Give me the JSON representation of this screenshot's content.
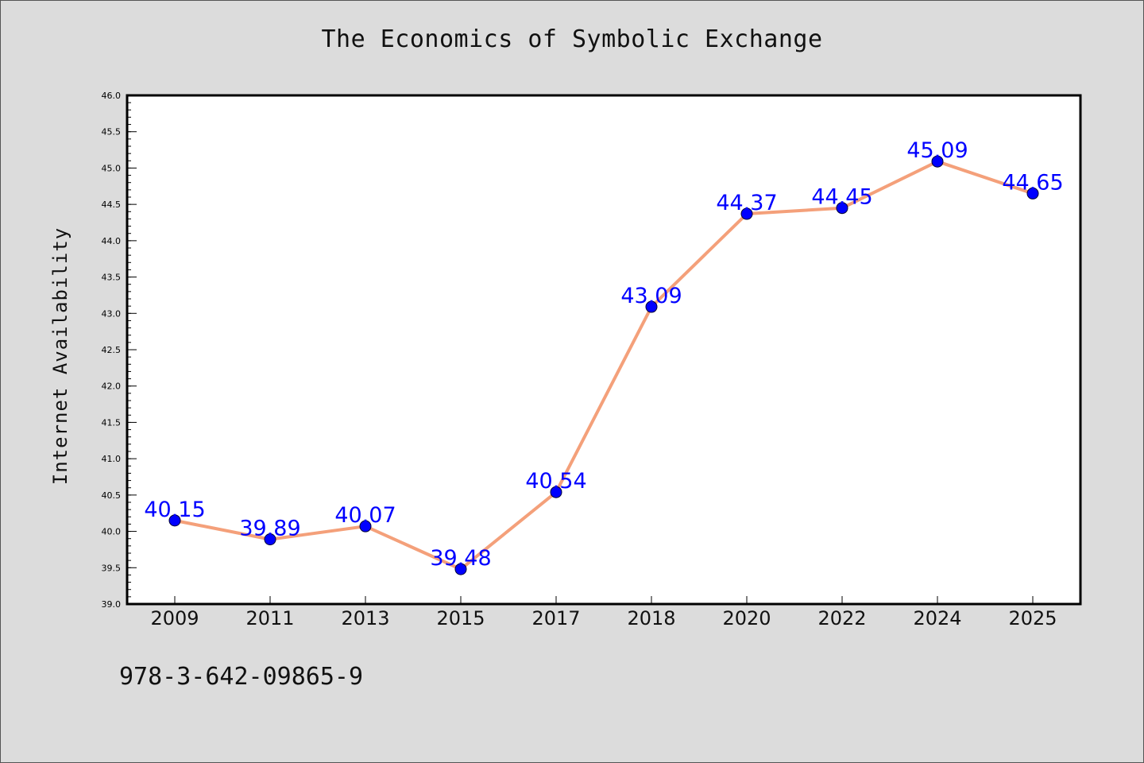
{
  "chart_data": {
    "type": "line",
    "title": "The Economics of Symbolic Exchange",
    "xlabel": "",
    "ylabel": "Internet Availability",
    "categories": [
      "2009",
      "2011",
      "2013",
      "2015",
      "2017",
      "2018",
      "2020",
      "2022",
      "2024",
      "2025"
    ],
    "series": [
      {
        "values": [
          40.15,
          39.89,
          40.07,
          39.48,
          40.54,
          43.09,
          44.37,
          44.45,
          45.09,
          44.65
        ],
        "data_labels": [
          "40.15",
          "39.89",
          "40.07",
          "39.48",
          "40.54",
          "43.09",
          "44.37",
          "44.45",
          "45.09",
          "44.65"
        ]
      }
    ],
    "ylim": [
      39.0,
      46.0
    ],
    "yticks": [
      "39.0",
      "39.5",
      "40.0",
      "40.5",
      "41.0",
      "41.5",
      "42.0",
      "42.5",
      "43.0",
      "43.5",
      "44.0",
      "44.5",
      "45.0",
      "45.5",
      "46.0"
    ],
    "grid": false,
    "colors": {
      "line": "#f4a07a",
      "marker": "#0000ff",
      "label": "#0000ff",
      "plot_bg": "#ffffff",
      "page_bg": "#dcdcdc"
    }
  },
  "footer": {
    "isbn": "978-3-642-09865-9"
  }
}
